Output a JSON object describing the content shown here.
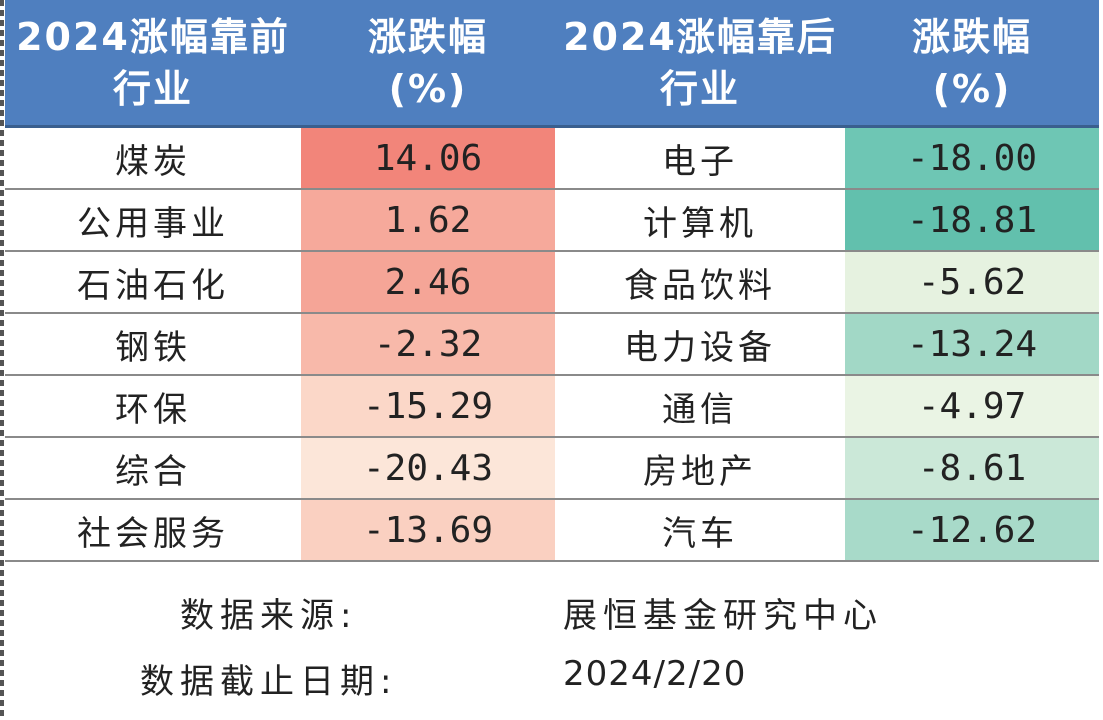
{
  "header": {
    "col1": [
      "2024涨幅靠前",
      "行业"
    ],
    "col2": [
      "涨跌幅",
      "(%)"
    ],
    "col3": [
      "2024涨幅靠后",
      "行业"
    ],
    "col4": [
      "涨跌幅",
      "(%)"
    ]
  },
  "rows": [
    {
      "top_industry": "煤炭",
      "top_change": "14.06",
      "bottom_industry": "电子",
      "bottom_change": "-18.00",
      "top_color": "#f2857a",
      "bottom_color": "#6ec6b4"
    },
    {
      "top_industry": "公用事业",
      "top_change": "1.62",
      "bottom_industry": "计算机",
      "bottom_change": "-18.81",
      "top_color": "#f6a99b",
      "bottom_color": "#62c0ad"
    },
    {
      "top_industry": "石油石化",
      "top_change": "2.46",
      "bottom_industry": "食品饮料",
      "bottom_change": "-5.62",
      "top_color": "#f5a597",
      "bottom_color": "#e6f2e0"
    },
    {
      "top_industry": "钢铁",
      "top_change": "-2.32",
      "bottom_industry": "电力设备",
      "bottom_change": "-13.24",
      "top_color": "#f8b9aa",
      "bottom_color": "#a2d8c6"
    },
    {
      "top_industry": "环保",
      "top_change": "-15.29",
      "bottom_industry": "通信",
      "bottom_change": "-4.97",
      "top_color": "#fbd7c8",
      "bottom_color": "#eaf4e4"
    },
    {
      "top_industry": "综合",
      "top_change": "-20.43",
      "bottom_industry": "房地产",
      "bottom_change": "-8.61",
      "top_color": "#fce6d9",
      "bottom_color": "#cbe8d8"
    },
    {
      "top_industry": "社会服务",
      "top_change": "-13.69",
      "bottom_industry": "汽车",
      "bottom_change": "-12.62",
      "top_color": "#fad0c1",
      "bottom_color": "#a8dac9"
    }
  ],
  "footer": {
    "source_label": "数据来源:",
    "source_value": "展恒基金研究中心",
    "date_label": "数据截止日期:",
    "date_value": "2024/2/20"
  }
}
